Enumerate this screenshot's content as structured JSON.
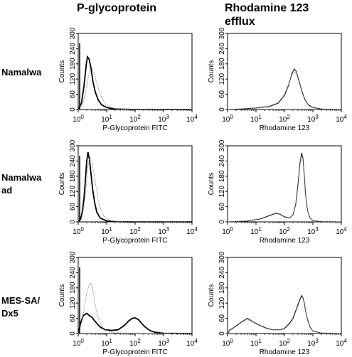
{
  "columns": [
    {
      "title": "P-glycoprotein"
    },
    {
      "title_line1": "Rhodamine 123",
      "title_line2": "efflux"
    }
  ],
  "rows": [
    {
      "label_line1": "Namalwa",
      "label_line2": ""
    },
    {
      "label_line1": "Namalwa",
      "label_line2": "ad"
    },
    {
      "label_line1": "MES-SA/",
      "label_line2": "Dx5"
    }
  ],
  "colors": {
    "solid": "#000000",
    "dotted": "#8a8a8a"
  },
  "chart_data": [
    {
      "type": "line",
      "row": "Namalwa",
      "column": "P-glycoprotein",
      "xlabel": "P-Glycoprotein FITC",
      "ylabel": "Counts",
      "xscale": "log",
      "xlim": [
        1,
        10000
      ],
      "ylim": [
        0,
        300
      ],
      "xticks": [
        1,
        10,
        100,
        1000,
        10000
      ],
      "yticks": [
        0,
        60,
        120,
        180,
        240,
        300
      ],
      "series": [
        {
          "style": "solid",
          "x": [
            1,
            1.3,
            1.6,
            1.9,
            2.1,
            2.4,
            2.8,
            3.3,
            4,
            5,
            6.5,
            9,
            13,
            20,
            40,
            100,
            1000,
            10000
          ],
          "y": [
            0,
            25,
            95,
            175,
            208,
            200,
            165,
            110,
            68,
            38,
            20,
            10,
            5,
            2,
            1,
            0,
            0,
            0
          ]
        },
        {
          "style": "dotted",
          "x": [
            1,
            1.4,
            1.8,
            2.2,
            2.6,
            3.1,
            3.7,
            4.5,
            5.5,
            7,
            9,
            13,
            20,
            40,
            100,
            1000,
            10000
          ],
          "y": [
            0,
            15,
            65,
            120,
            160,
            162,
            140,
            105,
            70,
            42,
            22,
            10,
            4,
            1,
            0,
            0,
            0
          ]
        }
      ]
    },
    {
      "type": "line",
      "row": "Namalwa",
      "column": "Rhodamine 123 efflux",
      "xlabel": "Rhodamine 123",
      "ylabel": "Counts",
      "xscale": "log",
      "xlim": [
        1,
        10000
      ],
      "ylim": [
        0,
        300
      ],
      "xticks": [
        1,
        10,
        100,
        1000,
        10000
      ],
      "yticks": [
        0,
        60,
        120,
        180,
        240,
        300
      ],
      "series": [
        {
          "style": "solid",
          "x": [
            1,
            3,
            10,
            30,
            60,
            100,
            140,
            180,
            220,
            260,
            300,
            350,
            420,
            520,
            700,
            1000,
            2000,
            10000
          ],
          "y": [
            0,
            2,
            6,
            12,
            25,
            55,
            95,
            140,
            160,
            150,
            125,
            100,
            70,
            40,
            18,
            8,
            2,
            0
          ]
        },
        {
          "style": "dotted",
          "x": [
            1,
            3,
            10,
            30,
            60,
            100,
            140,
            180,
            220,
            260,
            300,
            350,
            420,
            520,
            700,
            1000,
            2000,
            10000
          ],
          "y": [
            0,
            3,
            7,
            14,
            28,
            60,
            100,
            135,
            150,
            145,
            122,
            96,
            66,
            38,
            16,
            7,
            2,
            0
          ]
        }
      ]
    },
    {
      "type": "line",
      "row": "Namalwa ad",
      "column": "P-glycoprotein",
      "xlabel": "P-Glycoprotein FITC",
      "ylabel": "Counts",
      "xscale": "log",
      "xlim": [
        1,
        10000
      ],
      "ylim": [
        0,
        300
      ],
      "xticks": [
        1,
        10,
        100,
        1000,
        10000
      ],
      "yticks": [
        0,
        60,
        120,
        180,
        240,
        300
      ],
      "series": [
        {
          "style": "solid",
          "x": [
            1,
            1.2,
            1.4,
            1.6,
            1.8,
            2,
            2.2,
            2.5,
            2.8,
            3.2,
            3.8,
            4.5,
            6,
            10,
            20,
            100,
            1000,
            10000
          ],
          "y": [
            0,
            10,
            40,
            95,
            170,
            240,
            275,
            245,
            190,
            130,
            75,
            38,
            15,
            4,
            1,
            0,
            0,
            0
          ]
        },
        {
          "style": "dotted",
          "x": [
            1,
            1.3,
            1.6,
            1.9,
            2.2,
            2.6,
            3,
            3.5,
            4.2,
            5,
            6.5,
            9,
            15,
            30,
            100,
            1000,
            10000
          ],
          "y": [
            0,
            12,
            60,
            140,
            220,
            255,
            240,
            195,
            140,
            85,
            42,
            15,
            4,
            1,
            0,
            0,
            0
          ]
        }
      ]
    },
    {
      "type": "line",
      "row": "Namalwa ad",
      "column": "Rhodamine 123 efflux",
      "xlabel": "Rhodamine 123",
      "ylabel": "Counts",
      "xscale": "log",
      "xlim": [
        1,
        10000
      ],
      "ylim": [
        0,
        300
      ],
      "xticks": [
        1,
        10,
        100,
        1000,
        10000
      ],
      "yticks": [
        0,
        60,
        120,
        180,
        240,
        300
      ],
      "series": [
        {
          "style": "solid",
          "x": [
            1,
            5,
            15,
            30,
            50,
            70,
            100,
            150,
            200,
            250,
            300,
            350,
            400,
            450,
            500,
            550,
            650,
            800,
            1000,
            2000,
            10000
          ],
          "y": [
            0,
            3,
            12,
            25,
            34,
            30,
            20,
            15,
            28,
            70,
            150,
            230,
            272,
            250,
            180,
            110,
            45,
            15,
            5,
            1,
            0
          ]
        },
        {
          "style": "dotted",
          "x": [
            1,
            5,
            15,
            30,
            50,
            70,
            100,
            150,
            200,
            250,
            300,
            350,
            400,
            450,
            500,
            550,
            650,
            800,
            1000,
            2000,
            10000
          ],
          "y": [
            0,
            4,
            14,
            27,
            36,
            32,
            22,
            16,
            26,
            65,
            140,
            220,
            262,
            245,
            178,
            108,
            44,
            14,
            5,
            1,
            0
          ]
        }
      ]
    },
    {
      "type": "line",
      "row": "MES-SA/ Dx5",
      "column": "P-glycoprotein",
      "xlabel": "P-Glycoprotein FITC",
      "ylabel": "Counts",
      "xscale": "log",
      "xlim": [
        1,
        10000
      ],
      "ylim": [
        0,
        300
      ],
      "xticks": [
        1,
        10,
        100,
        1000,
        10000
      ],
      "yticks": [
        0,
        60,
        120,
        180,
        240,
        300
      ],
      "series": [
        {
          "style": "solid",
          "x": [
            1,
            1.2,
            1.5,
            2,
            2.5,
            3,
            3.5,
            4.5,
            6,
            9,
            15,
            25,
            40,
            60,
            80,
            100,
            130,
            170,
            230,
            330,
            500,
            1000,
            10000
          ],
          "y": [
            0,
            40,
            70,
            80,
            70,
            65,
            55,
            40,
            25,
            15,
            12,
            15,
            30,
            50,
            60,
            62,
            55,
            40,
            25,
            12,
            5,
            1,
            0
          ]
        },
        {
          "style": "dotted",
          "x": [
            1,
            1.3,
            1.7,
            2,
            2.4,
            2.8,
            3.2,
            3.8,
            4.5,
            6,
            8,
            12,
            20,
            40,
            100,
            1000,
            10000
          ],
          "y": [
            0,
            40,
            110,
            160,
            190,
            200,
            175,
            125,
            80,
            40,
            20,
            8,
            3,
            2,
            1,
            0,
            0
          ]
        }
      ]
    },
    {
      "type": "line",
      "row": "MES-SA/ Dx5",
      "column": "Rhodamine 123 efflux",
      "xlabel": "Rhodamine 123",
      "ylabel": "Counts",
      "xscale": "log",
      "xlim": [
        1,
        10000
      ],
      "ylim": [
        0,
        300
      ],
      "xticks": [
        1,
        10,
        100,
        1000,
        10000
      ],
      "yticks": [
        0,
        60,
        120,
        180,
        240,
        300
      ],
      "series": [
        {
          "style": "solid",
          "x": [
            1,
            1.2,
            1.5,
            2,
            3,
            5,
            7,
            10,
            15,
            25,
            40,
            70,
            100,
            150,
            200,
            250,
            300,
            350,
            400,
            450,
            500,
            550,
            650,
            800,
            1000,
            2000,
            10000
          ],
          "y": [
            0,
            15,
            20,
            30,
            45,
            60,
            50,
            40,
            30,
            20,
            15,
            15,
            20,
            40,
            60,
            90,
            115,
            135,
            150,
            140,
            120,
            90,
            55,
            25,
            10,
            2,
            0
          ]
        },
        {
          "style": "dotted",
          "x": [
            1,
            1.2,
            1.5,
            2,
            3,
            5,
            7,
            10,
            15,
            25,
            40,
            70,
            100,
            150,
            200,
            250,
            300,
            350,
            400,
            450,
            500,
            550,
            650,
            800,
            1000,
            2000,
            10000
          ],
          "y": [
            0,
            12,
            18,
            28,
            42,
            55,
            48,
            38,
            28,
            18,
            14,
            14,
            18,
            36,
            55,
            85,
            110,
            128,
            145,
            138,
            118,
            88,
            52,
            24,
            9,
            2,
            0
          ]
        }
      ]
    }
  ]
}
